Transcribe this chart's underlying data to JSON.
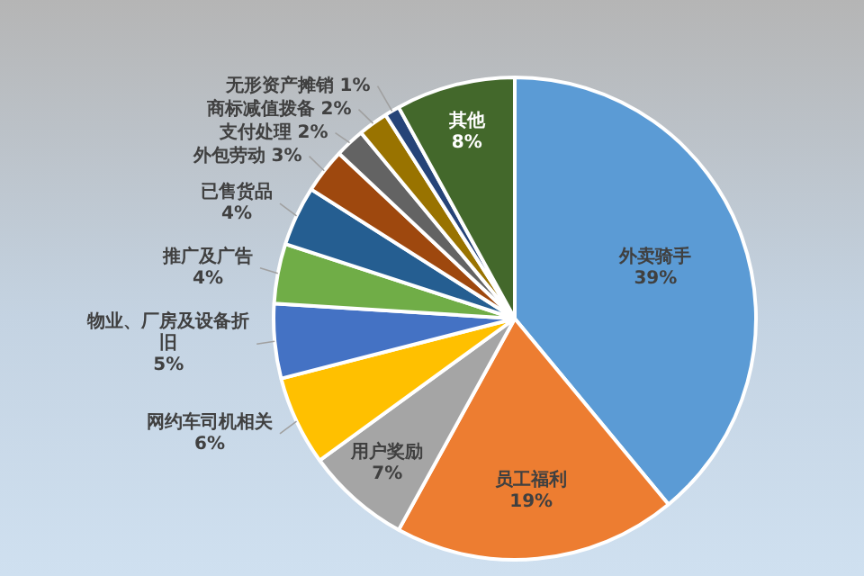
{
  "chart_data": {
    "type": "pie",
    "categories": [
      "外卖骑手",
      "员工福利",
      "用户奖励",
      "网约车司机相关",
      "物业、厂房及设备折旧",
      "推广及广告",
      "已售货品",
      "外包劳动",
      "支付处理",
      "商标减值拨备",
      "无形资产摊销",
      "其他"
    ],
    "values": [
      39,
      19,
      7,
      6,
      5,
      4,
      4,
      3,
      2,
      2,
      1,
      8
    ],
    "value_labels": [
      "39%",
      "19%",
      "7%",
      "6%",
      "5%",
      "4%",
      "4%",
      "3%",
      "2%",
      "2%",
      "1%",
      "8%"
    ],
    "colors": [
      "#5b9bd5",
      "#ed7d31",
      "#a5a5a5",
      "#ffc000",
      "#4472c4",
      "#70ad47",
      "#255e91",
      "#9e480e",
      "#636363",
      "#997300",
      "#264478",
      "#43682b"
    ],
    "legend": false
  }
}
